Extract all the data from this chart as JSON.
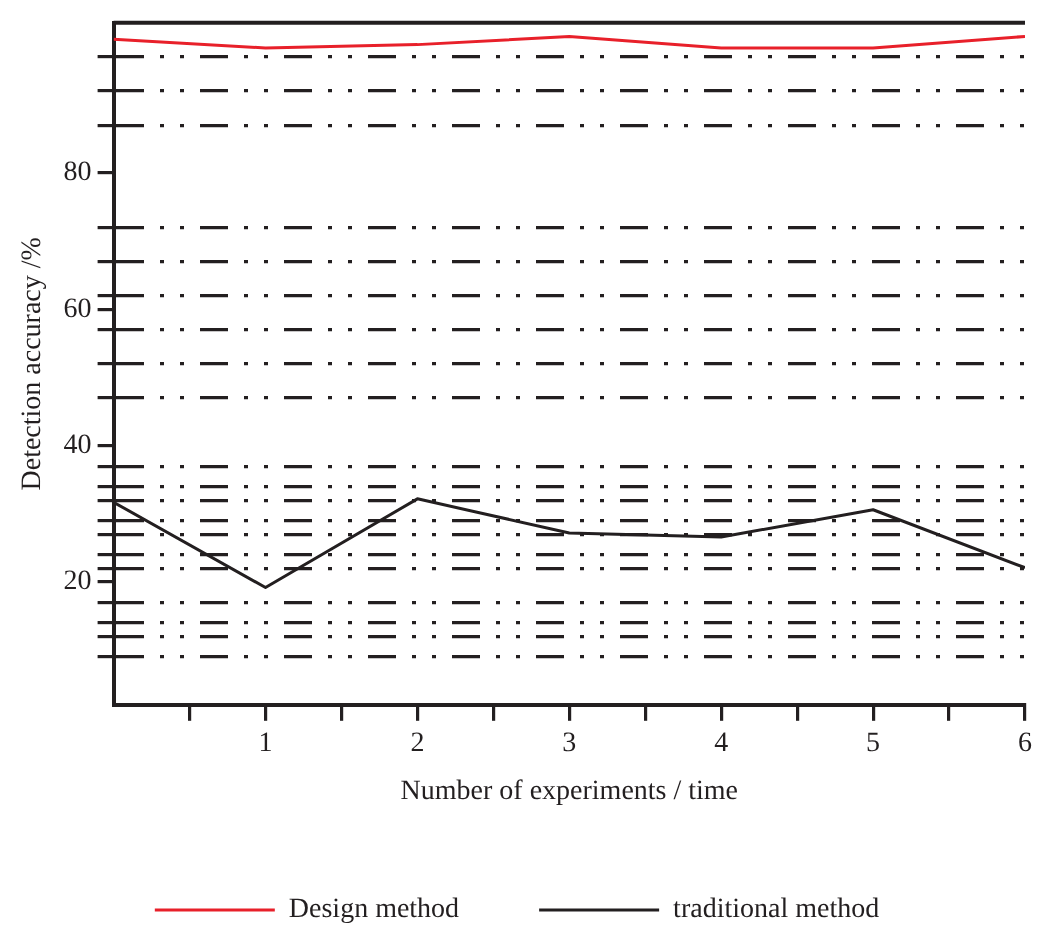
{
  "chart_data": {
    "type": "line",
    "xlabel": "Number of experiments / time",
    "ylabel": "Detection accuracy /%",
    "x": [
      0,
      1,
      2,
      3,
      4,
      5,
      6
    ],
    "series": [
      {
        "name": "Design method",
        "color": "#e8202a",
        "values": [
          99.6,
          98.3,
          98.8,
          100,
          98.3,
          98.3,
          100
        ]
      },
      {
        "name": "traditional method",
        "color": "#231f20",
        "values": [
          31.7,
          19.2,
          32.2,
          27.2,
          26.6,
          30.6,
          22.1
        ]
      }
    ],
    "xlim": [
      0,
      6
    ],
    "xticks": [
      {
        "value": 0.5,
        "label": null
      },
      1,
      {
        "value": 1.5,
        "label": null
      },
      2,
      {
        "value": 2.5,
        "label": null
      },
      3,
      {
        "value": 3.5,
        "label": null
      },
      4,
      {
        "value": 4.5,
        "label": null
      },
      5,
      {
        "value": 5.5,
        "label": null
      },
      6
    ],
    "ylim": [
      2,
      102
    ],
    "yticks": [
      {
        "value": 9,
        "label": null
      },
      {
        "value": 12,
        "label": null
      },
      {
        "value": 14,
        "label": null
      },
      {
        "value": 17,
        "label": null
      },
      20,
      {
        "value": 22,
        "label": null
      },
      {
        "value": 24,
        "label": null
      },
      {
        "value": 27,
        "label": null
      },
      {
        "value": 29,
        "label": null
      },
      {
        "value": 32,
        "label": null
      },
      {
        "value": 34,
        "label": null
      },
      {
        "value": 37,
        "label": null
      },
      40,
      {
        "value": 47,
        "label": null
      },
      {
        "value": 52,
        "label": null
      },
      {
        "value": 57,
        "label": null
      },
      60,
      {
        "value": 62,
        "label": null
      },
      {
        "value": 67,
        "label": null
      },
      {
        "value": 72,
        "label": null
      },
      80,
      {
        "value": 87,
        "label": null
      },
      {
        "value": 92,
        "label": null
      },
      {
        "value": 97,
        "label": null
      }
    ],
    "grid": "y",
    "legend": "bottom",
    "marker": "none",
    "line_style": "solid"
  }
}
